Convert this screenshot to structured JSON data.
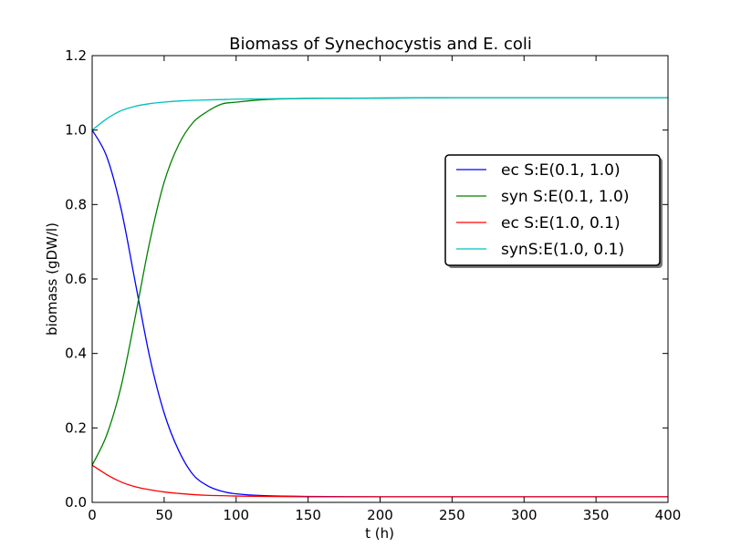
{
  "chart_data": {
    "type": "line",
    "title": "Biomass of Synechocystis and E. coli",
    "xlabel": "t (h)",
    "ylabel": "biomass (gDW/l)",
    "xlim": [
      0,
      400
    ],
    "ylim": [
      0,
      1.2
    ],
    "xticks": [
      "0",
      "50",
      "100",
      "150",
      "200",
      "250",
      "300",
      "350",
      "400"
    ],
    "yticks": [
      "0.0",
      "0.2",
      "0.4",
      "0.6",
      "0.8",
      "1.0",
      "1.2"
    ],
    "grid": false,
    "legend_position": "center-right",
    "series": [
      {
        "name": "ec S:E(0.1, 1.0)",
        "color": "#0000ff",
        "x": [
          0,
          10,
          20,
          30,
          40,
          50,
          60,
          70,
          80,
          90,
          100,
          120,
          150,
          200,
          250,
          300,
          350,
          400
        ],
        "y": [
          1.0,
          0.93,
          0.79,
          0.59,
          0.39,
          0.24,
          0.14,
          0.075,
          0.045,
          0.03,
          0.023,
          0.018,
          0.016,
          0.015,
          0.015,
          0.015,
          0.015,
          0.015
        ]
      },
      {
        "name": "syn S:E(0.1, 1.0)",
        "color": "#008000",
        "x": [
          0,
          10,
          20,
          30,
          40,
          50,
          60,
          70,
          80,
          90,
          100,
          120,
          150,
          200,
          250,
          300,
          350,
          400
        ],
        "y": [
          0.1,
          0.18,
          0.31,
          0.5,
          0.7,
          0.86,
          0.96,
          1.02,
          1.05,
          1.07,
          1.075,
          1.082,
          1.085,
          1.086,
          1.087,
          1.087,
          1.087,
          1.087
        ]
      },
      {
        "name": "ec S:E(1.0, 0.1)",
        "color": "#ff0000",
        "x": [
          0,
          10,
          20,
          30,
          40,
          50,
          60,
          70,
          80,
          90,
          100,
          120,
          150,
          200,
          250,
          300,
          350,
          400
        ],
        "y": [
          0.1,
          0.075,
          0.055,
          0.042,
          0.034,
          0.028,
          0.024,
          0.021,
          0.019,
          0.018,
          0.017,
          0.016,
          0.015,
          0.015,
          0.015,
          0.015,
          0.015,
          0.015
        ]
      },
      {
        "name": "synS:E(1.0, 0.1)",
        "color": "#00bfbf",
        "x": [
          0,
          10,
          20,
          30,
          40,
          50,
          60,
          70,
          80,
          90,
          100,
          120,
          150,
          200,
          250,
          300,
          350,
          400
        ],
        "y": [
          1.0,
          1.03,
          1.052,
          1.064,
          1.071,
          1.075,
          1.078,
          1.08,
          1.081,
          1.082,
          1.083,
          1.084,
          1.085,
          1.086,
          1.087,
          1.087,
          1.087,
          1.087
        ]
      }
    ]
  }
}
